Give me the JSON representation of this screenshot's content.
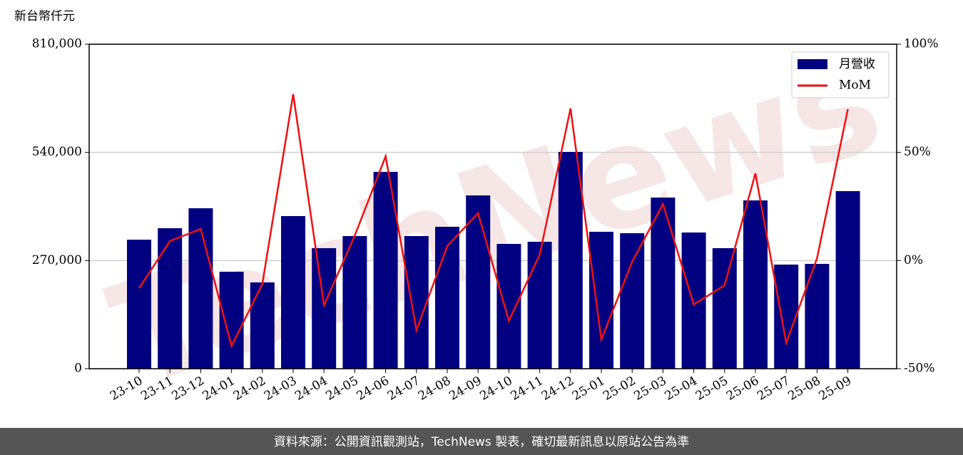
{
  "chart_data": {
    "type": "combo",
    "y_label": "新台幣仟元",
    "watermark": "TechNews",
    "footer": "資料來源：公開資訊觀測站，TechNews 製表，確切最新訊息以原站公告為準",
    "categories": [
      "23-10",
      "23-11",
      "23-12",
      "24-01",
      "24-02",
      "24-03",
      "24-04",
      "24-05",
      "24-06",
      "24-07",
      "24-08",
      "24-09",
      "24-10",
      "24-11",
      "24-12",
      "25-01",
      "25-02",
      "25-03",
      "25-04",
      "25-05",
      "25-06",
      "25-07",
      "25-08",
      "25-09"
    ],
    "series": [
      {
        "name": "月營收",
        "type": "bar",
        "color": "#000080",
        "values": [
          322000,
          350700,
          400500,
          242100,
          215400,
          381000,
          300900,
          331100,
          491300,
          331100,
          354300,
          432600,
          311500,
          316900,
          541200,
          341800,
          338200,
          427200,
          340000,
          300900,
          420100,
          259900,
          261700,
          443300
        ]
      },
      {
        "name": "MoM",
        "type": "line",
        "axis": "y2",
        "color": "#ee1111",
        "values": [
          -12.8,
          9.0,
          14.6,
          -39.5,
          -10.8,
          76.9,
          -20.7,
          11.6,
          48.2,
          -32.2,
          6.7,
          21.9,
          -27.9,
          2.7,
          70.3,
          -36.5,
          -0.6,
          26.1,
          -20.3,
          -11.4,
          40.3,
          -38.1,
          1.1,
          70.0
        ]
      }
    ],
    "ylim": [
      0,
      810000
    ],
    "yticks": [
      {
        "value": 0,
        "label": "0"
      },
      {
        "value": 270000,
        "label": "270,000"
      },
      {
        "value": 540000,
        "label": "540,000"
      },
      {
        "value": 810000,
        "label": "810,000"
      }
    ],
    "y2lim": [
      -50,
      100
    ],
    "y2ticks": [
      {
        "value": -50,
        "label": "-50%"
      },
      {
        "value": 0,
        "label": "0%"
      },
      {
        "value": 50,
        "label": "50%"
      },
      {
        "value": 100,
        "label": "100%"
      }
    ],
    "grid": true,
    "legend": "upper right"
  }
}
